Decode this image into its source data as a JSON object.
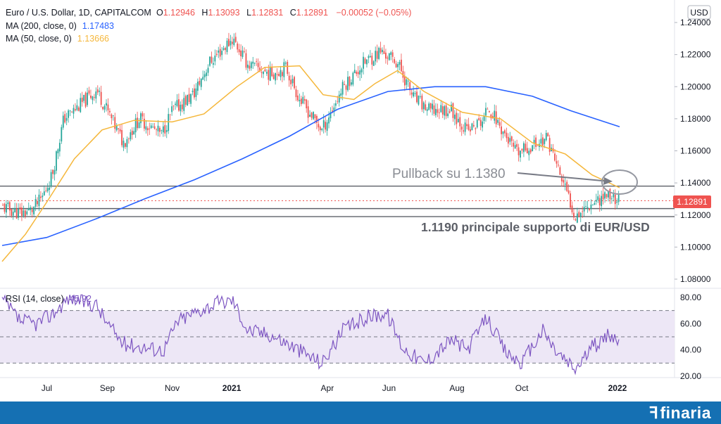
{
  "header": {
    "symbol": "Euro / U.S. Dollar, 1D, CAPITALCOM",
    "open_label": "O",
    "open": "1.12946",
    "high_label": "H",
    "high": "1.13093",
    "low_label": "L",
    "low": "1.12831",
    "close_label": "C",
    "close": "1.12891",
    "change": "−0.00052 (−0.05%)",
    "ma200_label": "MA (200, close, 0)",
    "ma200_value": "1.17483",
    "ma50_label": "MA (50, close, 0)",
    "ma50_value": "1.13666",
    "currency": "USD"
  },
  "colors": {
    "up": "#26a69a",
    "down": "#ef5350",
    "ma200": "#2962ff",
    "ma50": "#f5b73b",
    "rsi": "#7e57c2",
    "rsi_band": "#ede7f6",
    "footer": "#1570b3"
  },
  "annotations": {
    "pullback": "Pullback su 1.1380",
    "support": "1.1190 principale supporto di EUR/USD"
  },
  "chart_data": [
    {
      "type": "candlestick",
      "title": "Euro / U.S. Dollar, 1D, CAPITALCOM",
      "yaxis_ticks": [
        "1.24000",
        "1.22000",
        "1.20000",
        "1.18000",
        "1.16000",
        "1.14000",
        "1.12000",
        "1.10000",
        "1.08000"
      ],
      "ylim": [
        1.075,
        1.245
      ],
      "xaxis_ticks": [
        "Jul",
        "Sep",
        "Nov",
        "2021",
        "Apr",
        "Jun",
        "Aug",
        "Oct",
        "2022"
      ],
      "last_price": "1.12891",
      "horizontal_levels": [
        1.138,
        1.124,
        1.119
      ],
      "price_path": [
        [
          "2020-06-03",
          1.125
        ],
        [
          "2020-06-20",
          1.121
        ],
        [
          "2020-07-01",
          1.123
        ],
        [
          "2020-07-10",
          1.13
        ],
        [
          "2020-07-20",
          1.145
        ],
        [
          "2020-07-31",
          1.18
        ],
        [
          "2020-08-18",
          1.19
        ],
        [
          "2020-08-31",
          1.198
        ],
        [
          "2020-09-10",
          1.185
        ],
        [
          "2020-09-25",
          1.165
        ],
        [
          "2020-10-10",
          1.18
        ],
        [
          "2020-10-31",
          1.17
        ],
        [
          "2020-11-10",
          1.185
        ],
        [
          "2020-11-30",
          1.195
        ],
        [
          "2020-12-15",
          1.215
        ],
        [
          "2021-01-06",
          1.23
        ],
        [
          "2021-01-20",
          1.214
        ],
        [
          "2021-02-10",
          1.208
        ],
        [
          "2021-02-25",
          1.212
        ],
        [
          "2021-03-10",
          1.192
        ],
        [
          "2021-03-31",
          1.173
        ],
        [
          "2021-04-20",
          1.2
        ],
        [
          "2021-05-10",
          1.215
        ],
        [
          "2021-05-25",
          1.222
        ],
        [
          "2021-06-10",
          1.215
        ],
        [
          "2021-06-25",
          1.193
        ],
        [
          "2021-07-10",
          1.185
        ],
        [
          "2021-07-30",
          1.186
        ],
        [
          "2021-08-15",
          1.172
        ],
        [
          "2021-08-31",
          1.18
        ],
        [
          "2021-09-03",
          1.188
        ],
        [
          "2021-09-30",
          1.158
        ],
        [
          "2021-10-20",
          1.165
        ],
        [
          "2021-10-29",
          1.168
        ],
        [
          "2021-11-10",
          1.145
        ],
        [
          "2021-11-24",
          1.12
        ],
        [
          "2021-12-10",
          1.128
        ],
        [
          "2021-12-25",
          1.133
        ],
        [
          "2022-01-05",
          1.1289
        ]
      ],
      "ma200_path": [
        [
          "2020-06-03",
          1.101
        ],
        [
          "2020-07-15",
          1.106
        ],
        [
          "2020-09-01",
          1.118
        ],
        [
          "2020-10-15",
          1.13
        ],
        [
          "2020-12-01",
          1.142
        ],
        [
          "2021-01-15",
          1.155
        ],
        [
          "2021-02-28",
          1.169
        ],
        [
          "2021-04-15",
          1.186
        ],
        [
          "2021-06-01",
          1.197
        ],
        [
          "2021-07-15",
          1.2
        ],
        [
          "2021-09-01",
          1.2
        ],
        [
          "2021-10-15",
          1.194
        ],
        [
          "2021-11-20",
          1.185
        ],
        [
          "2022-01-05",
          1.175
        ]
      ],
      "ma50_path": [
        [
          "2020-06-03",
          1.091
        ],
        [
          "2020-06-25",
          1.108
        ],
        [
          "2020-07-15",
          1.128
        ],
        [
          "2020-08-10",
          1.155
        ],
        [
          "2020-09-05",
          1.173
        ],
        [
          "2020-10-05",
          1.179
        ],
        [
          "2020-11-10",
          1.178
        ],
        [
          "2020-12-10",
          1.183
        ],
        [
          "2021-01-10",
          1.2
        ],
        [
          "2021-02-05",
          1.212
        ],
        [
          "2021-03-10",
          1.213
        ],
        [
          "2021-04-01",
          1.195
        ],
        [
          "2021-04-30",
          1.192
        ],
        [
          "2021-05-20",
          1.202
        ],
        [
          "2021-06-10",
          1.21
        ],
        [
          "2021-07-05",
          1.197
        ],
        [
          "2021-08-10",
          1.184
        ],
        [
          "2021-09-15",
          1.18
        ],
        [
          "2021-10-15",
          1.165
        ],
        [
          "2021-11-15",
          1.158
        ],
        [
          "2021-12-10",
          1.145
        ],
        [
          "2022-01-05",
          1.137
        ]
      ]
    },
    {
      "type": "line",
      "title": "RSI (14, close)",
      "last_value": "45.92",
      "yaxis_ticks": [
        "80.00",
        "60.00",
        "40.00",
        "20.00"
      ],
      "ylim": [
        20,
        83
      ],
      "band": [
        30,
        70
      ],
      "midline": 50,
      "path": [
        [
          "2020-06-03",
          78
        ],
        [
          "2020-06-20",
          62
        ],
        [
          "2020-07-05",
          60
        ],
        [
          "2020-07-20",
          67
        ],
        [
          "2020-08-05",
          80
        ],
        [
          "2020-08-31",
          74
        ],
        [
          "2020-09-10",
          60
        ],
        [
          "2020-09-25",
          45
        ],
        [
          "2020-10-15",
          42
        ],
        [
          "2020-11-02",
          40
        ],
        [
          "2020-11-15",
          62
        ],
        [
          "2020-12-05",
          70
        ],
        [
          "2020-12-20",
          75
        ],
        [
          "2021-01-06",
          78
        ],
        [
          "2021-01-20",
          55
        ],
        [
          "2021-02-10",
          52
        ],
        [
          "2021-03-05",
          42
        ],
        [
          "2021-03-31",
          30
        ],
        [
          "2021-04-20",
          55
        ],
        [
          "2021-05-15",
          66
        ],
        [
          "2021-05-31",
          68
        ],
        [
          "2021-06-15",
          42
        ],
        [
          "2021-07-05",
          30
        ],
        [
          "2021-07-31",
          48
        ],
        [
          "2021-08-15",
          40
        ],
        [
          "2021-09-02",
          65
        ],
        [
          "2021-09-20",
          38
        ],
        [
          "2021-10-05",
          30
        ],
        [
          "2021-10-25",
          55
        ],
        [
          "2021-11-05",
          40
        ],
        [
          "2021-11-24",
          25
        ],
        [
          "2021-12-10",
          42
        ],
        [
          "2021-12-28",
          52
        ],
        [
          "2022-01-05",
          46
        ]
      ]
    }
  ]
}
